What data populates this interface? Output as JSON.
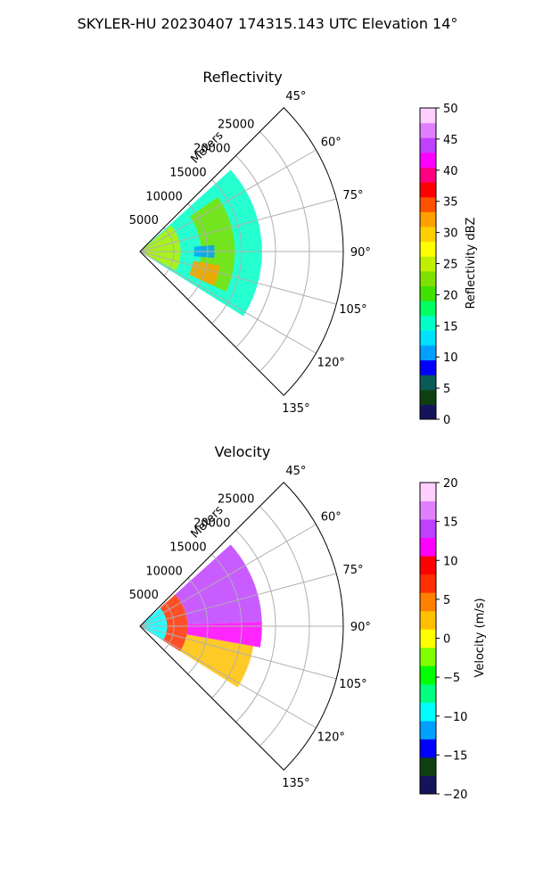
{
  "figure": {
    "suptitle": "SKYLER-HU  20230407  174315.143 UTC Elevation 14°"
  },
  "chart_data": [
    {
      "type": "heatmap",
      "projection": "polar-sector",
      "title": "Reflectivity",
      "range_axis_label": "Meters",
      "range_ticks": [
        "5000",
        "10000",
        "15000",
        "20000",
        "25000"
      ],
      "range_max": 30000,
      "azimuth_range_deg": [
        45,
        135
      ],
      "azimuth_ticks": [
        "45°",
        "60°",
        "75°",
        "90°",
        "105°",
        "120°",
        "135°"
      ],
      "grid": true,
      "echo_extent": {
        "azimuth_deg": [
          45,
          122
        ],
        "range_m": [
          0,
          18500
        ]
      },
      "echo_regions": [
        {
          "azimuth_deg": [
            48,
            122
          ],
          "range_m": [
            0,
            18000
          ],
          "value_dBZ": 15
        },
        {
          "azimuth_deg": [
            50,
            118
          ],
          "range_m": [
            0,
            6000
          ],
          "value_dBZ": 25
        },
        {
          "azimuth_deg": [
            55,
            115
          ],
          "range_m": [
            9000,
            14000
          ],
          "value_dBZ": 22
        },
        {
          "azimuth_deg": [
            100,
            115
          ],
          "range_m": [
            8000,
            12000
          ],
          "value_dBZ": 32
        },
        {
          "azimuth_deg": [
            85,
            95
          ],
          "range_m": [
            8000,
            11000
          ],
          "value_dBZ": 10
        }
      ],
      "colorbar": {
        "label": "Reflectivity dBZ",
        "min": 0,
        "max": 50,
        "ticks": [
          "0",
          "5",
          "10",
          "15",
          "20",
          "25",
          "30",
          "35",
          "40",
          "45",
          "50"
        ]
      }
    },
    {
      "type": "heatmap",
      "projection": "polar-sector",
      "title": "Velocity",
      "range_axis_label": "Meters",
      "range_ticks": [
        "5000",
        "10000",
        "15000",
        "20000",
        "25000"
      ],
      "range_max": 30000,
      "azimuth_range_deg": [
        45,
        135
      ],
      "azimuth_ticks": [
        "45°",
        "60°",
        "75°",
        "90°",
        "105°",
        "120°",
        "135°"
      ],
      "grid": true,
      "echo_extent": {
        "azimuth_deg": [
          45,
          122
        ],
        "range_m": [
          0,
          18500
        ]
      },
      "echo_regions": [
        {
          "azimuth_deg": [
            48,
            122
          ],
          "range_m": [
            0,
            4000
          ],
          "value_ms": -10
        },
        {
          "azimuth_deg": [
            48,
            122
          ],
          "range_m": [
            4000,
            7000
          ],
          "value_ms": 8
        },
        {
          "azimuth_deg": [
            48,
            88
          ],
          "range_m": [
            7000,
            18000
          ],
          "value_ms": 15
        },
        {
          "azimuth_deg": [
            88,
            100
          ],
          "range_m": [
            7000,
            18000
          ],
          "value_ms": 12
        },
        {
          "azimuth_deg": [
            100,
            122
          ],
          "range_m": [
            7000,
            17000
          ],
          "value_ms": 2
        }
      ],
      "colorbar": {
        "label": "Velocity (m/s)",
        "min": -20,
        "max": 20,
        "ticks": [
          "−20",
          "−15",
          "−10",
          "−5",
          "0",
          "5",
          "10",
          "15",
          "20"
        ]
      }
    }
  ],
  "colormaps": {
    "reflectivity": [
      "#14145a",
      "#104010",
      "#0a5a5a",
      "#0000ff",
      "#00a0ff",
      "#00e0ff",
      "#00ffc8",
      "#00ff64",
      "#40e000",
      "#80e000",
      "#c0f000",
      "#ffff00",
      "#ffd000",
      "#ffa000",
      "#ff5000",
      "#ff0000",
      "#ff0080",
      "#ff00ff",
      "#c040ff",
      "#e080ff",
      "#ffd0ff"
    ],
    "velocity": [
      "#14145a",
      "#104010",
      "#0000ff",
      "#00a0ff",
      "#00ffff",
      "#00ff80",
      "#00ff00",
      "#80ff00",
      "#ffff00",
      "#ffc000",
      "#ff8000",
      "#ff3000",
      "#ff0000",
      "#ff00ff",
      "#c040ff",
      "#e080ff",
      "#ffd0ff"
    ]
  }
}
